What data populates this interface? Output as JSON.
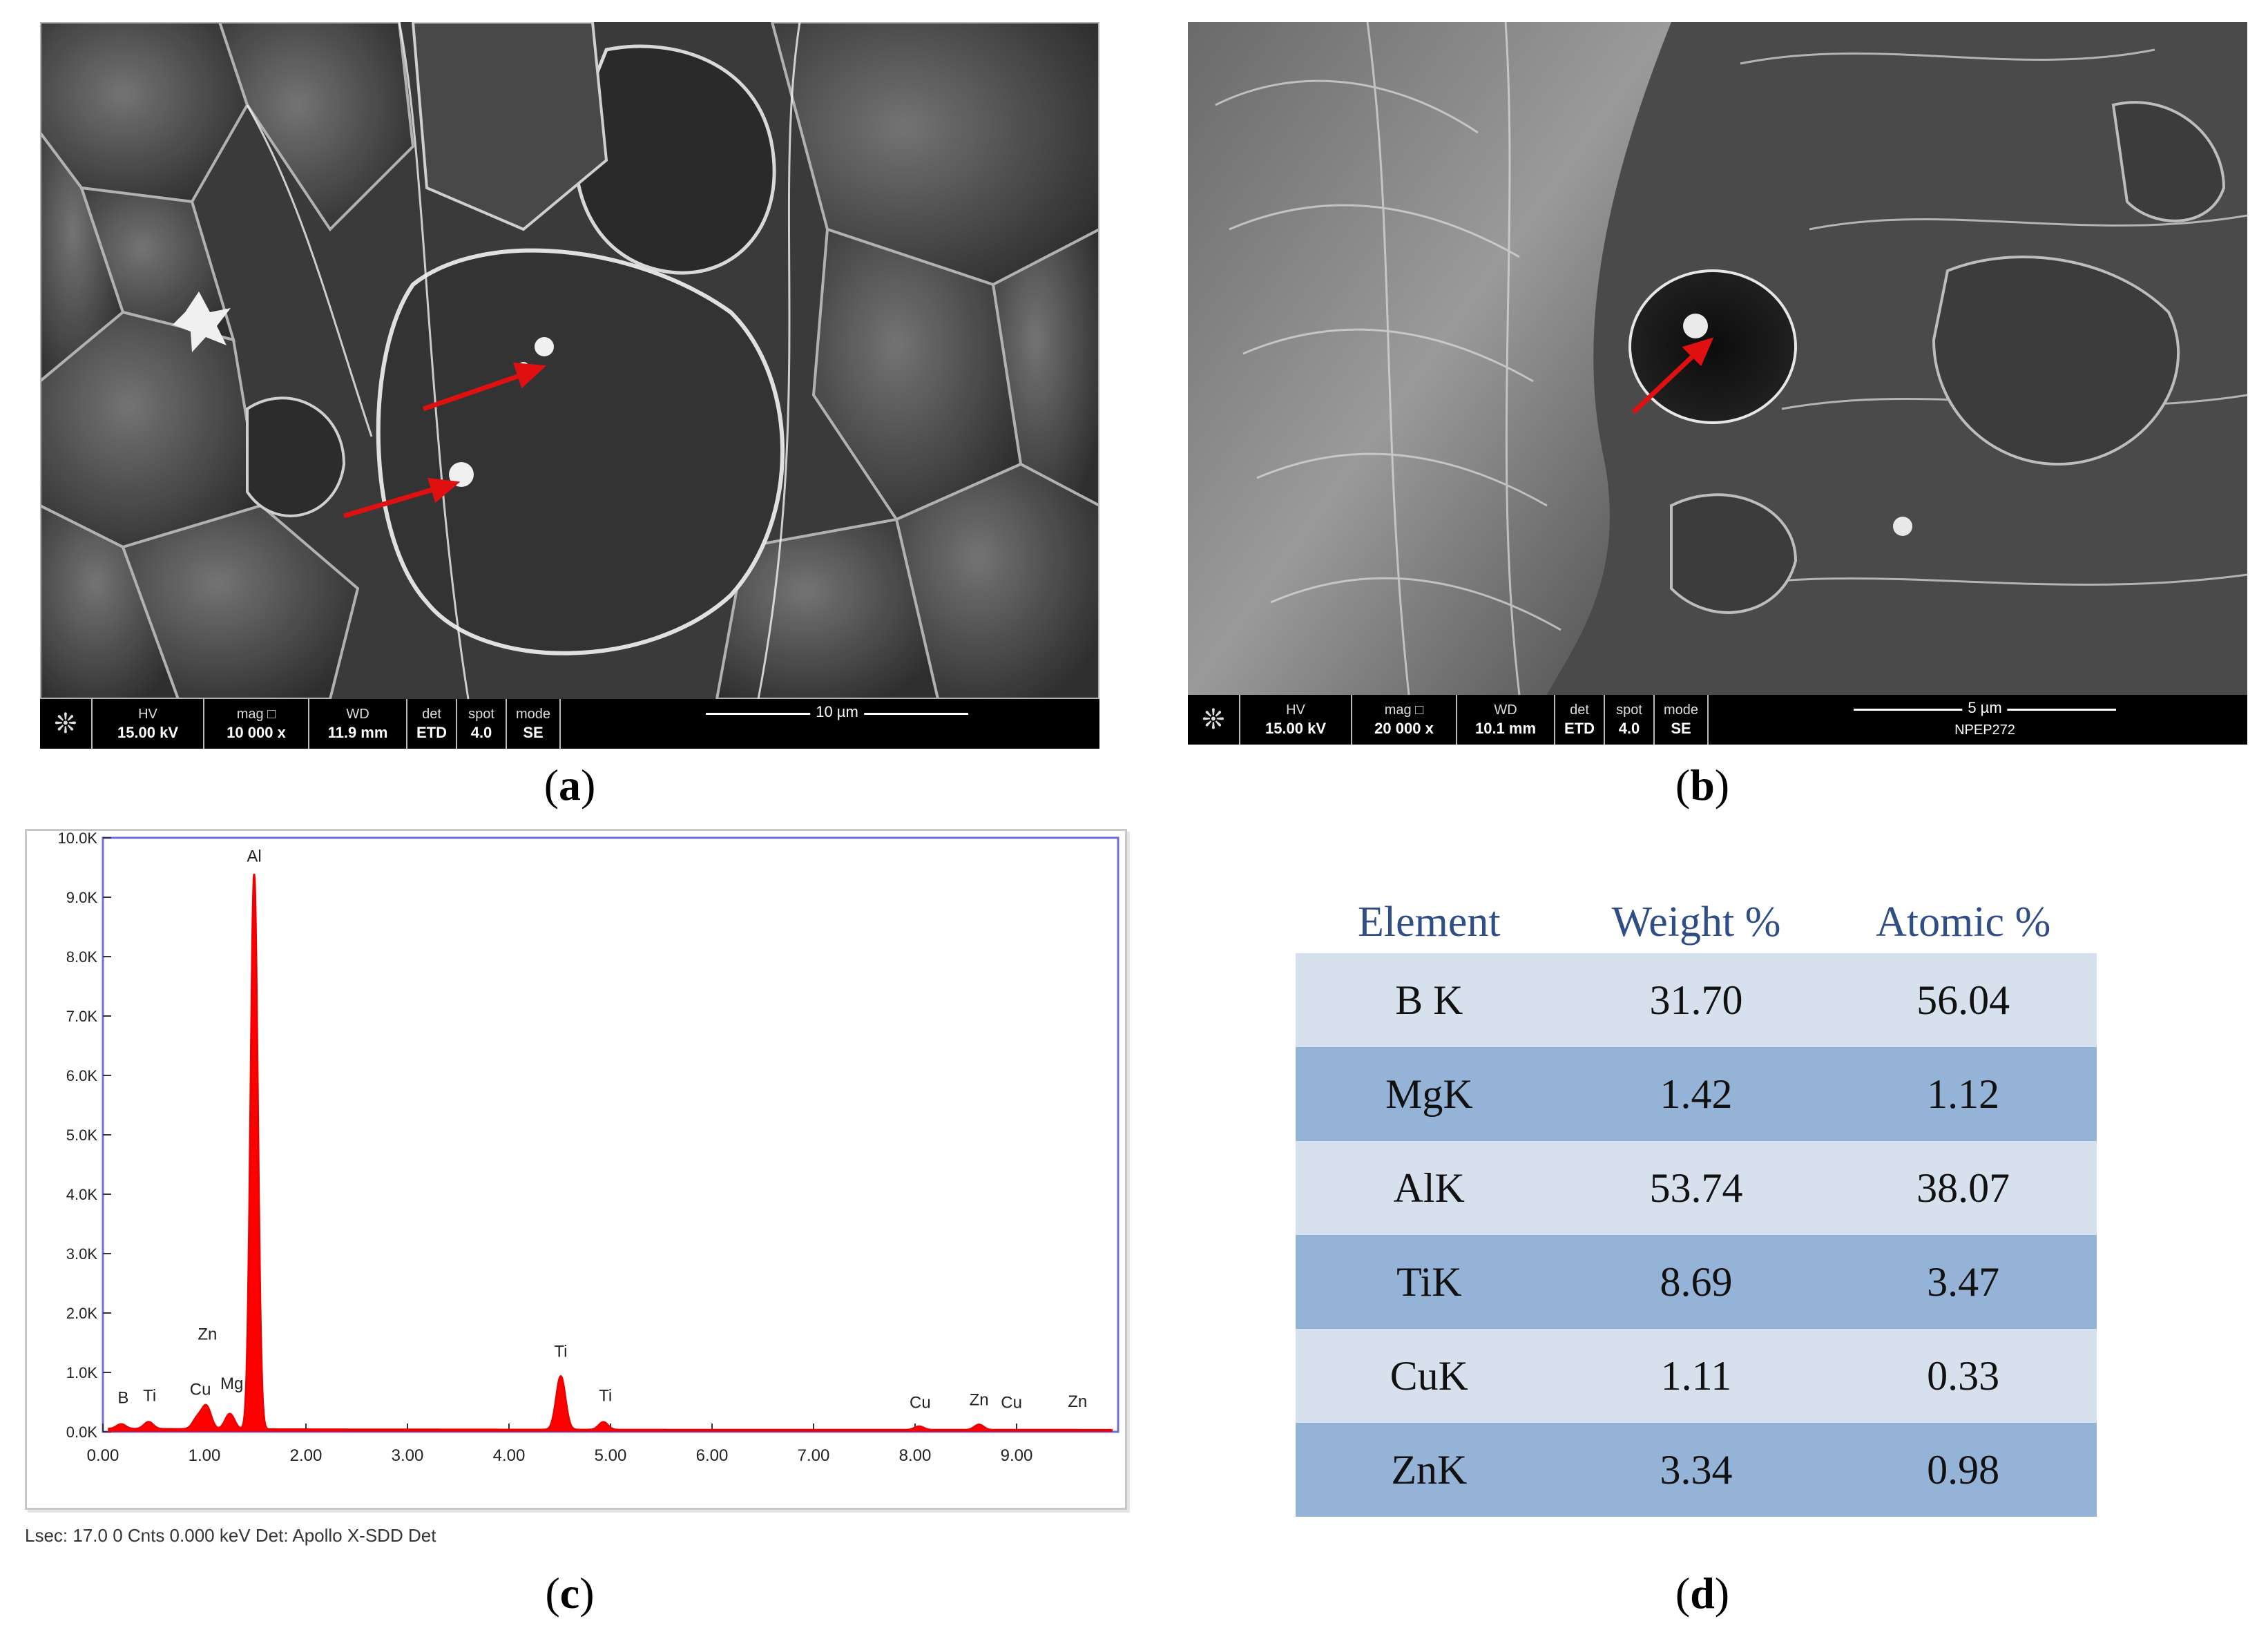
{
  "panels": {
    "a": {
      "label": "a",
      "databar": {
        "hv_label": "HV",
        "hv": "15.00 kV",
        "mag_label": "mag □",
        "mag": "10 000 x",
        "wd_label": "WD",
        "wd": "11.9 mm",
        "det_label": "det",
        "det": "ETD",
        "spot_label": "spot",
        "spot": "4.0",
        "mode_label": "mode",
        "mode": "SE",
        "scale": "10 µm"
      }
    },
    "b": {
      "label": "b",
      "databar": {
        "hv_label": "HV",
        "hv": "15.00 kV",
        "mag_label": "mag □",
        "mag": "20 000 x",
        "wd_label": "WD",
        "wd": "10.1 mm",
        "det_label": "det",
        "det": "ETD",
        "spot_label": "spot",
        "spot": "4.0",
        "mode_label": "mode",
        "mode": "SE",
        "scale": "5 µm",
        "sample": "NPEP272"
      }
    },
    "c": {
      "label": "c"
    },
    "d": {
      "label": "d"
    }
  },
  "chart_data": {
    "type": "line",
    "title": "",
    "xlabel": "",
    "ylabel": "",
    "xlim": [
      0,
      10.0
    ],
    "ylim": [
      0,
      10000
    ],
    "x_ticks": [
      "0.00",
      "1.00",
      "2.00",
      "3.00",
      "4.00",
      "5.00",
      "6.00",
      "7.00",
      "8.00",
      "9.00"
    ],
    "y_ticks": [
      "0.0K",
      "1.0K",
      "2.0K",
      "3.0K",
      "4.0K",
      "5.0K",
      "6.0K",
      "7.0K",
      "8.0K",
      "9.0K",
      "10.0K"
    ],
    "color": "#ff0000",
    "spectrum_peaks": [
      {
        "x": 0.18,
        "y": 80
      },
      {
        "x": 0.45,
        "y": 120
      },
      {
        "x": 0.93,
        "y": 180
      },
      {
        "x": 1.02,
        "y": 380
      },
      {
        "x": 1.25,
        "y": 260
      },
      {
        "x": 1.49,
        "y": 9350
      },
      {
        "x": 4.51,
        "y": 900
      },
      {
        "x": 4.93,
        "y": 130
      },
      {
        "x": 8.04,
        "y": 60
      },
      {
        "x": 8.63,
        "y": 90
      }
    ],
    "annotations": [
      {
        "label": "Al",
        "x": 1.49,
        "y": 9600
      },
      {
        "label": "Zn",
        "x": 1.03,
        "y": 1550
      },
      {
        "label": "B",
        "x": 0.2,
        "y": 480
      },
      {
        "label": "Ti",
        "x": 0.46,
        "y": 520
      },
      {
        "label": "Cu",
        "x": 0.96,
        "y": 620
      },
      {
        "label": "Mg",
        "x": 1.27,
        "y": 720
      },
      {
        "label": "Ti",
        "x": 4.51,
        "y": 1260
      },
      {
        "label": "Ti",
        "x": 4.95,
        "y": 520
      },
      {
        "label": "Cu",
        "x": 8.05,
        "y": 400
      },
      {
        "label": "Zn",
        "x": 8.63,
        "y": 450
      },
      {
        "label": "Cu",
        "x": 8.95,
        "y": 400
      },
      {
        "label": "Zn",
        "x": 9.6,
        "y": 420
      }
    ],
    "footer": "Lsec: 17.0  0 Cnts  0.000 keV  Det: Apollo X-SDD Det"
  },
  "table": {
    "headers": [
      "Element",
      "Weight %",
      "Atomic %"
    ],
    "rows": [
      [
        "B K",
        "31.70",
        "56.04"
      ],
      [
        "MgK",
        "1.42",
        "1.12"
      ],
      [
        "AlK",
        "53.74",
        "38.07"
      ],
      [
        "TiK",
        "8.69",
        "3.47"
      ],
      [
        "CuK",
        "1.11",
        "0.33"
      ],
      [
        "ZnK",
        "3.34",
        "0.98"
      ]
    ]
  }
}
